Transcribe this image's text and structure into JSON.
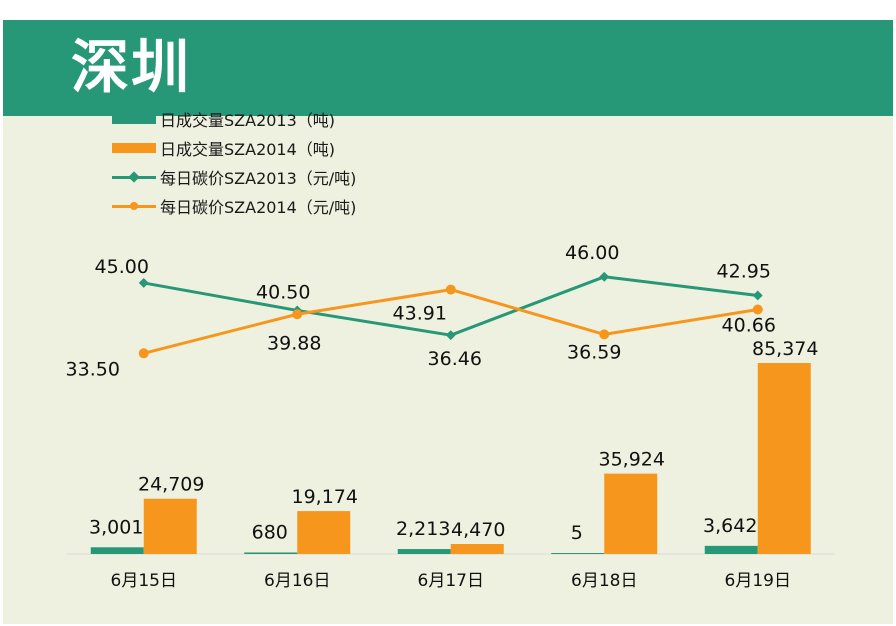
{
  "header": {
    "title": "深圳"
  },
  "colors": {
    "green": "#279877",
    "orange": "#f7961d",
    "panel": "#eef1df",
    "header": "#279877"
  },
  "chart_data": {
    "type": "bar+line",
    "categories": [
      "6月15日",
      "6月16日",
      "6月17日",
      "6月18日",
      "6月19日"
    ],
    "bar_series": [
      {
        "name": "日成交量SZA2013（吨)",
        "color": "#279877",
        "values": [
          3001,
          680,
          2213,
          5,
          3642
        ],
        "labels": [
          "3,001",
          "680",
          "2,213",
          "5",
          "3,642"
        ]
      },
      {
        "name": "日成交量SZA2014（吨)",
        "color": "#f7961d",
        "values": [
          24709,
          19174,
          4470,
          35924,
          85374
        ],
        "labels": [
          "24,709",
          "19,174",
          "4,470",
          "35,924",
          "85,374"
        ]
      }
    ],
    "line_series": [
      {
        "name": "每日碳价SZA2013（元/吨)",
        "color": "#279877",
        "marker": "diamond",
        "values": [
          45.0,
          40.5,
          36.46,
          46.0,
          42.95
        ],
        "labels": [
          "45.00",
          "40.50",
          "36.46",
          "46.00",
          "42.95"
        ]
      },
      {
        "name": "每日碳价SZA2014（元/吨)",
        "color": "#f7961d",
        "marker": "circle",
        "values": [
          33.5,
          39.88,
          43.91,
          36.59,
          40.66
        ],
        "labels": [
          "33.50",
          "39.88",
          "43.91",
          "36.59",
          "40.66"
        ]
      }
    ],
    "legend_position": "top-left",
    "grid": false
  }
}
